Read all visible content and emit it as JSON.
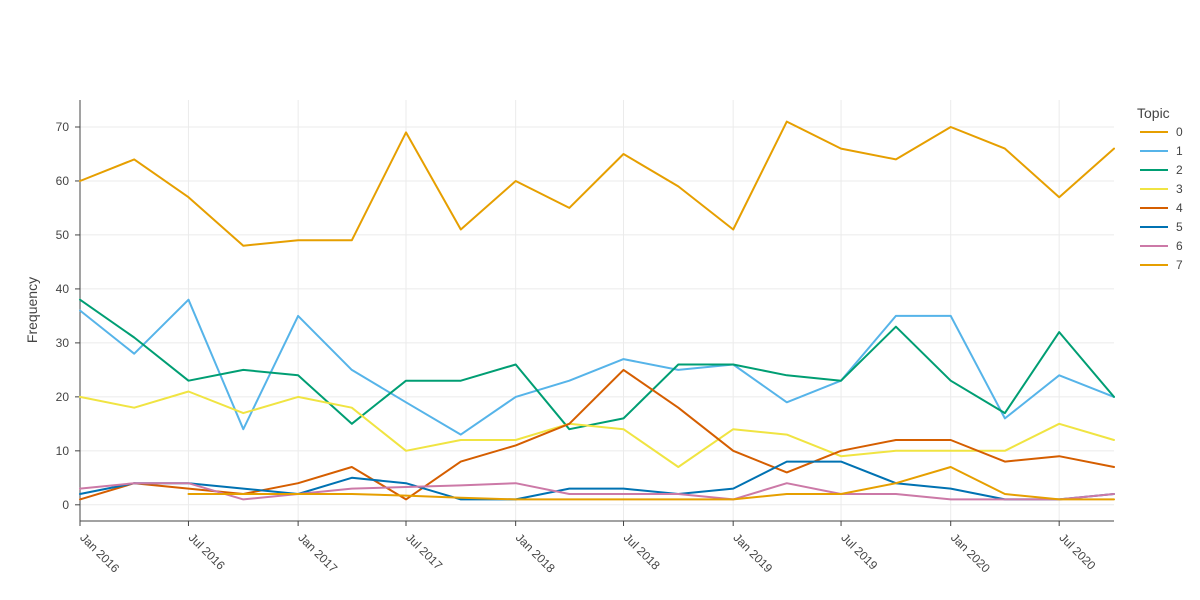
{
  "chart_data": {
    "type": "line",
    "ylabel": "Frequency",
    "legend_title": "Topic",
    "legend_position": "top-right",
    "grid": true,
    "ylim": [
      -3,
      75
    ],
    "yticks": [
      0,
      10,
      20,
      30,
      40,
      50,
      60,
      70
    ],
    "xrange": [
      "2016-01-01",
      "2020-10-01"
    ],
    "xticks": [
      {
        "date": "2016-01-01",
        "label": "Jan 2016"
      },
      {
        "date": "2016-07-01",
        "label": "Jul 2016"
      },
      {
        "date": "2017-01-01",
        "label": "Jan 2017"
      },
      {
        "date": "2017-07-01",
        "label": "Jul 2017"
      },
      {
        "date": "2018-01-01",
        "label": "Jan 2018"
      },
      {
        "date": "2018-07-01",
        "label": "Jul 2018"
      },
      {
        "date": "2019-01-01",
        "label": "Jan 2019"
      },
      {
        "date": "2019-07-01",
        "label": "Jul 2019"
      },
      {
        "date": "2020-01-01",
        "label": "Jan 2020"
      },
      {
        "date": "2020-07-01",
        "label": "Jul 2020"
      }
    ],
    "x": [
      "2016-01-01",
      "2016-04-01",
      "2016-07-01",
      "2016-10-01",
      "2017-01-01",
      "2017-04-01",
      "2017-07-01",
      "2017-10-01",
      "2018-01-01",
      "2018-04-01",
      "2018-07-01",
      "2018-10-01",
      "2019-01-01",
      "2019-04-01",
      "2019-07-01",
      "2019-10-01",
      "2020-01-01",
      "2020-04-01",
      "2020-07-01",
      "2020-10-01"
    ],
    "series": [
      {
        "name": "0",
        "color": "#E69F00",
        "values": [
          60,
          64,
          57,
          48,
          49,
          49,
          69,
          51,
          60,
          55,
          65,
          59,
          51,
          71,
          66,
          64,
          70,
          66,
          57,
          66
        ]
      },
      {
        "name": "1",
        "color": "#56B4E9",
        "values": [
          36,
          28,
          38,
          14,
          35,
          25,
          19,
          13,
          20,
          23,
          27,
          25,
          26,
          19,
          23,
          35,
          35,
          16,
          24,
          20
        ]
      },
      {
        "name": "2",
        "color": "#009E73",
        "values": [
          38,
          31,
          23,
          25,
          24,
          15,
          23,
          23,
          26,
          14,
          16,
          26,
          26,
          24,
          23,
          33,
          23,
          17,
          32,
          20
        ]
      },
      {
        "name": "3",
        "color": "#F0E442",
        "values": [
          20,
          18,
          21,
          17,
          20,
          18,
          10,
          12,
          12,
          15,
          14,
          7,
          14,
          13,
          9,
          10,
          10,
          10,
          15,
          12
        ]
      },
      {
        "name": "4",
        "color": "#D55E00",
        "values": [
          1,
          4,
          3,
          2,
          4,
          7,
          1,
          8,
          11,
          15,
          25,
          18,
          10,
          6,
          10,
          12,
          12,
          8,
          9,
          7
        ]
      },
      {
        "name": "5",
        "color": "#0072B2",
        "values": [
          2,
          4,
          4,
          3,
          2,
          5,
          4,
          1,
          1,
          3,
          3,
          2,
          3,
          8,
          8,
          4,
          3,
          1,
          1,
          2
        ]
      },
      {
        "name": "6",
        "color": "#CC79A7",
        "values": [
          3,
          4,
          4,
          1,
          2,
          3,
          3.3,
          3.6,
          4,
          2,
          2,
          2,
          1,
          4,
          2,
          2,
          1,
          1,
          1,
          2
        ]
      },
      {
        "name": "7",
        "color": "#E69F00",
        "values": [
          null,
          null,
          2,
          2,
          2,
          2,
          1.7,
          1.3,
          1,
          1,
          1,
          1,
          1,
          2,
          2,
          4,
          7,
          2,
          1,
          1
        ]
      }
    ]
  }
}
